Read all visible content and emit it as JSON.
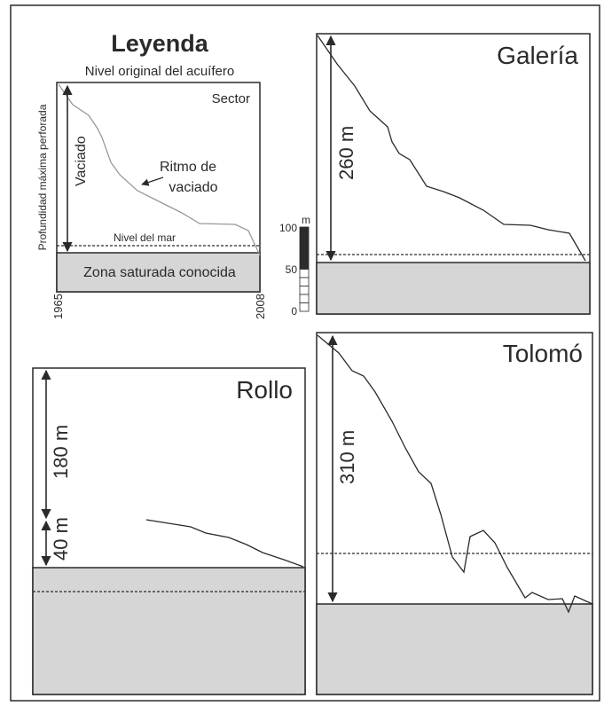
{
  "legend": {
    "title": "Leyenda",
    "top_label": "Nivel original del acuífero",
    "sector_label": "Sector",
    "side_label": "Profundidad máxima perforada",
    "drain_label": "Vaciado",
    "rate_label_line1": "Ritmo de",
    "rate_label_line2": "vaciado",
    "sea_label": "Nivel del mar",
    "saturated_label": "Zona saturada conocida",
    "year_start": "1965",
    "year_end": "2008"
  },
  "scale_bar": {
    "unit": "m",
    "ticks": [
      "100",
      "50",
      "0"
    ]
  },
  "panels": {
    "galeria": {
      "name": "Galería",
      "depth_label": "260 m"
    },
    "rollo": {
      "name": "Rollo",
      "upper_label": "180 m",
      "lower_label": "40 m"
    },
    "tolomo": {
      "name": "Tolomó",
      "depth_label": "310 m"
    }
  },
  "colors": {
    "line": "#2a2a2a",
    "saturated_fill": "#d6d6d6",
    "legend_curve": "#999999",
    "scale_dark": "#2b2b2b"
  }
}
